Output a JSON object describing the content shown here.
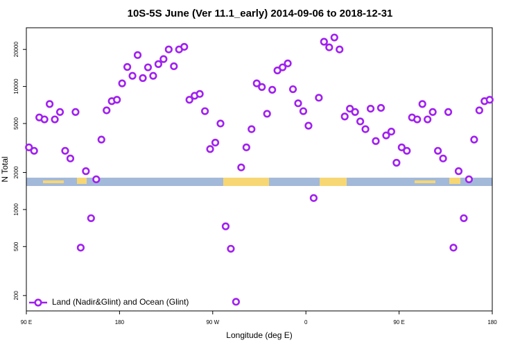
{
  "chart_data": {
    "type": "scatter",
    "title": "10S-5S June (Ver 11.1_early)   2014-09-06 to 2018-12-31",
    "xlabel": "Longitude (deg E)",
    "ylabel": "N Total",
    "xlim": [
      90,
      540
    ],
    "xticks": [
      {
        "value": 90,
        "label": "90 E"
      },
      180,
      {
        "value": 270,
        "label": "90 W"
      },
      {
        "value": 360,
        "label": "0"
      },
      {
        "value": 450,
        "label": "90 E"
      },
      {
        "value": 540,
        "label": "180"
      }
    ],
    "ylim": [
      150,
      30000
    ],
    "ylog": true,
    "yticks": [
      200,
      500,
      1000,
      2000,
      5000,
      10000,
      20000
    ],
    "legend": "lower left",
    "x": [
      92.5,
      97.5,
      102.5,
      107.5,
      112.5,
      117.5,
      122.5,
      127.5,
      132.5,
      137.5,
      142.5,
      147.5,
      152.5,
      157.5,
      162.5,
      167.5,
      172.5,
      177.5,
      182.5,
      187.5,
      192.5,
      197.5,
      202.5,
      207.5,
      212.5,
      217.5,
      222.5,
      227.5,
      232.5,
      237.5,
      242.5,
      247.5,
      252.5,
      257.5,
      262.5,
      267.5,
      272.5,
      277.5,
      282.5,
      287.5,
      292.5,
      297.5,
      302.5,
      307.5,
      312.5,
      317.5,
      322.5,
      327.5,
      332.5,
      337.5,
      342.5,
      347.5,
      352.5,
      357.5,
      362.5,
      367.5,
      372.5,
      377.5,
      382.5,
      387.5,
      392.5,
      397.5,
      402.5,
      407.5,
      412.5,
      417.5,
      422.5,
      427.5,
      432.5,
      437.5,
      442.5,
      447.5,
      452.5,
      457.5,
      462.5,
      467.5,
      472.5,
      477.5,
      482.5,
      487.5,
      492.5,
      497.5,
      502.5,
      507.5,
      512.5,
      517.5,
      522.5,
      527.5,
      532.5,
      537.5
    ],
    "series": [
      {
        "name": "Land (Nadir&Glint) and Ocean (Glint)",
        "color": "#a020f0",
        "values": [
          3200,
          3000,
          5600,
          5400,
          7200,
          5400,
          6200,
          3000,
          2600,
          6200,
          490,
          2050,
          850,
          1760,
          3700,
          6400,
          7600,
          7800,
          10600,
          14400,
          12200,
          18000,
          11700,
          14300,
          12200,
          15200,
          16700,
          20000,
          14600,
          20000,
          21000,
          7800,
          8400,
          8700,
          6300,
          3100,
          3500,
          5000,
          730,
          480,
          178,
          2200,
          3200,
          4500,
          10600,
          9900,
          6000,
          9400,
          13500,
          14300,
          15400,
          9500,
          7300,
          6300,
          4800,
          1240,
          8100,
          23100,
          20800,
          25000,
          20000,
          5700,
          6600,
          6200,
          5200,
          4500,
          6600,
          3600,
          6700,
          4000,
          4300,
          2400,
          3200,
          3000,
          5600,
          5400,
          7200,
          5400,
          6200,
          3000,
          2600,
          6200,
          490,
          2050,
          850,
          1760,
          3700,
          6400,
          7600,
          7800
        ]
      }
    ]
  }
}
